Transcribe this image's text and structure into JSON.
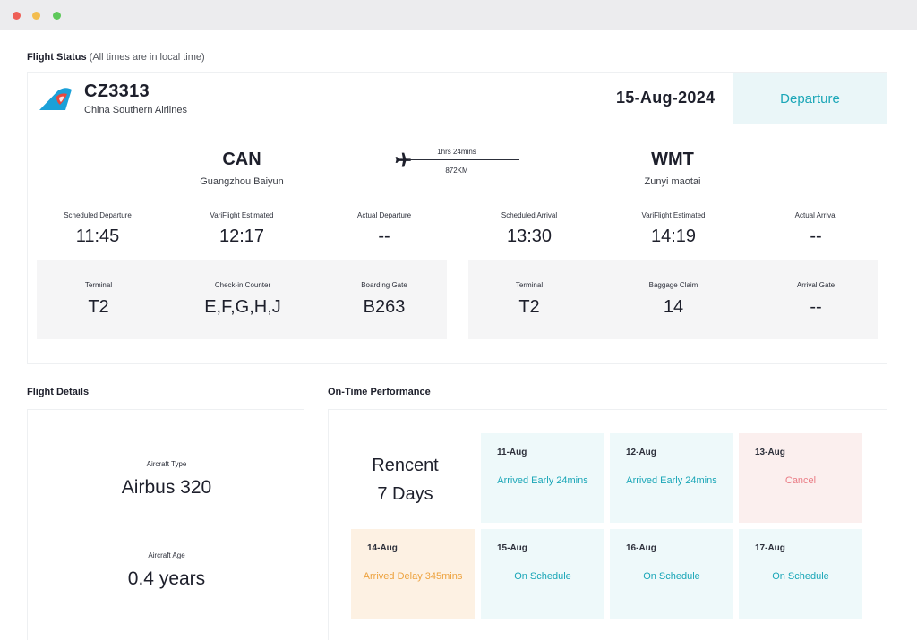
{
  "window": {
    "controls": [
      "close",
      "minimize",
      "maximize"
    ]
  },
  "flight_status": {
    "title": "Flight Status",
    "note": "(All times are in local time)",
    "flight_number": "CZ3313",
    "airline": "China Southern Airlines",
    "date": "15-Aug-2024",
    "direction": "Departure",
    "origin": {
      "code": "CAN",
      "name": "Guangzhou Baiyun"
    },
    "destination": {
      "code": "WMT",
      "name": "Zunyi maotai"
    },
    "duration": "1hrs 24mins",
    "distance": "872KM",
    "times": [
      {
        "label": "Scheduled Departure",
        "value": "11:45"
      },
      {
        "label": "VariFlight Estimated",
        "value": "12:17"
      },
      {
        "label": "Actual Departure",
        "value": "--"
      },
      {
        "label": "Scheduled Arrival",
        "value": "13:30"
      },
      {
        "label": "VariFlight Estimated",
        "value": "14:19"
      },
      {
        "label": "Actual Arrival",
        "value": "--"
      }
    ],
    "departure_info": [
      {
        "label": "Terminal",
        "value": "T2"
      },
      {
        "label": "Check-in Counter",
        "value": "E,F,G,H,J"
      },
      {
        "label": "Boarding Gate",
        "value": "B263"
      }
    ],
    "arrival_info": [
      {
        "label": "Terminal",
        "value": "T2"
      },
      {
        "label": "Baggage Claim",
        "value": "14"
      },
      {
        "label": "Arrival Gate",
        "value": "--"
      }
    ]
  },
  "flight_details": {
    "title": "Flight Details",
    "aircraft_type_label": "Aircraft Type",
    "aircraft_type": "Airbus 320",
    "aircraft_age_label": "Aircraft Age",
    "aircraft_age": "0.4 years"
  },
  "on_time_performance": {
    "title": "On-Time Performance",
    "recent_line1": "Rencent",
    "recent_line2": "7 Days",
    "days": [
      {
        "date": "11-Aug",
        "status": "Arrived Early 24mins",
        "tone": "teal"
      },
      {
        "date": "12-Aug",
        "status": "Arrived Early 24mins",
        "tone": "teal"
      },
      {
        "date": "13-Aug",
        "status": "Cancel",
        "tone": "red"
      },
      {
        "date": "14-Aug",
        "status": "Arrived Delay 345mins",
        "tone": "orange"
      },
      {
        "date": "15-Aug",
        "status": "On Schedule",
        "tone": "teal"
      },
      {
        "date": "16-Aug",
        "status": "On Schedule",
        "tone": "teal"
      },
      {
        "date": "17-Aug",
        "status": "On Schedule",
        "tone": "teal"
      }
    ]
  },
  "colors": {
    "accent_teal": "#1aa6b7",
    "cancel_red": "#ea7c85",
    "delay_orange": "#eda23e",
    "airline_logo_blue": "#1ba0d8"
  },
  "icons": [
    "airline-logo-icon",
    "airplane-icon"
  ]
}
